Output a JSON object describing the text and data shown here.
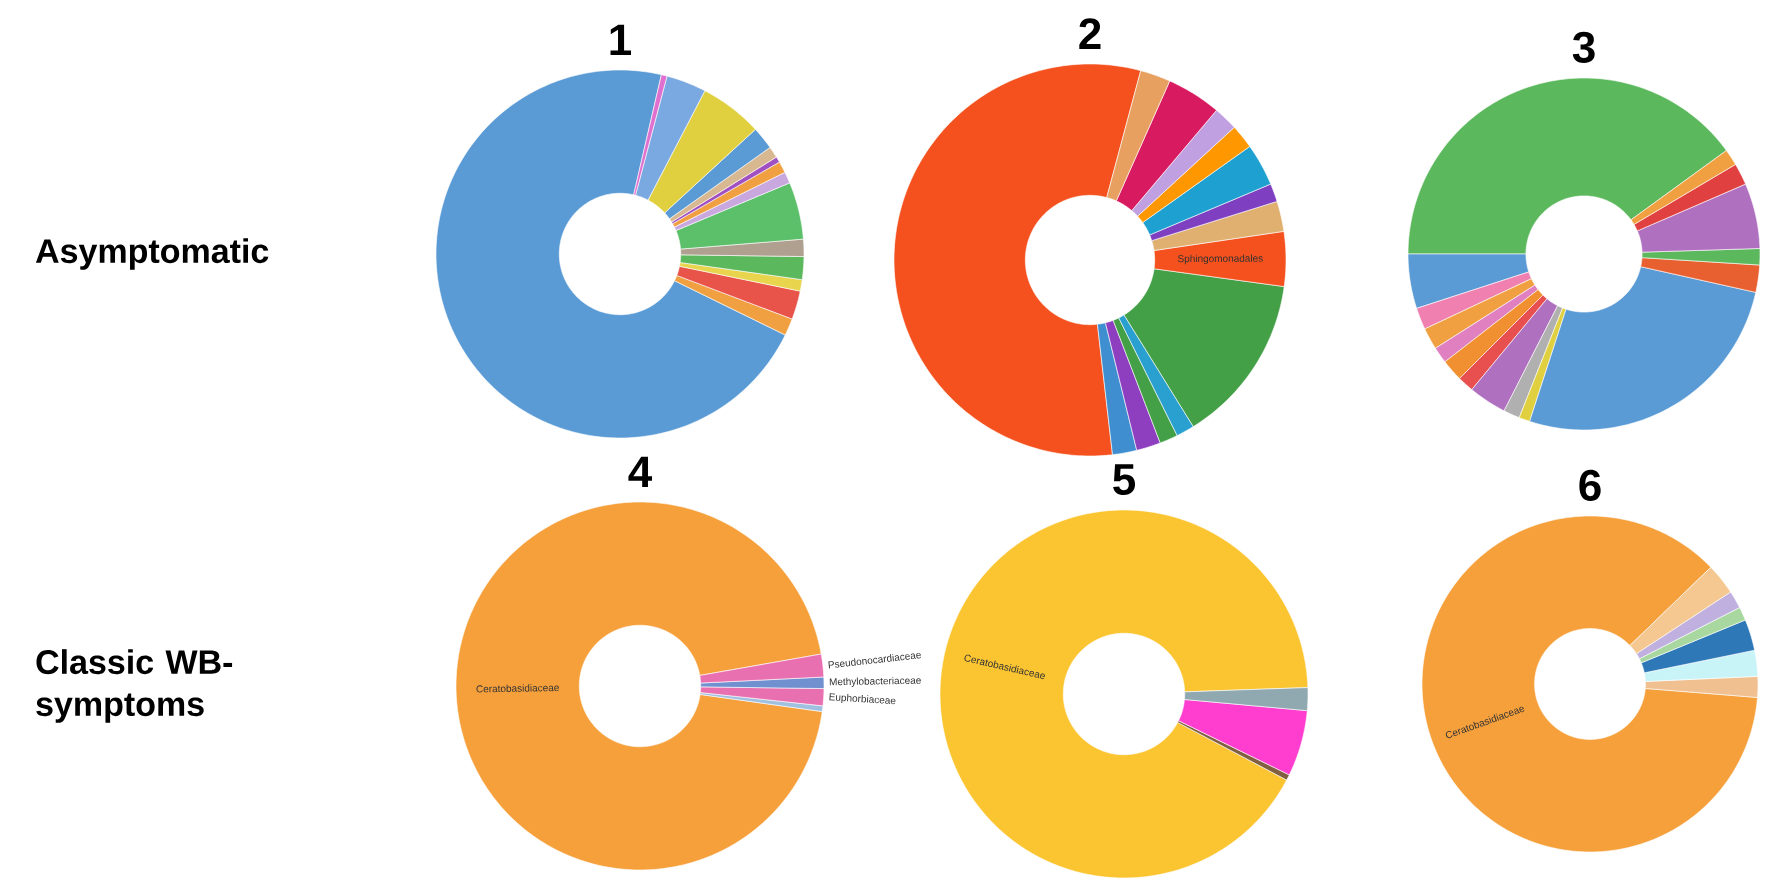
{
  "chart_data": [
    {
      "type": "donut",
      "title": "1",
      "annotations": [
        "Asymptomatic"
      ],
      "categories": [
        null,
        null,
        null,
        null,
        null,
        null,
        null,
        null,
        null,
        null,
        null,
        null,
        null,
        null,
        null
      ],
      "values": [
        71,
        1.5,
        2.5,
        1,
        2,
        1.5,
        5,
        1,
        1,
        0.5,
        1,
        2,
        5.5,
        3.5,
        0.5
      ],
      "colors": [
        "#5b9bd5",
        "#f0a040",
        "#e8534a",
        "#e8d44d",
        "#5cb85c",
        "#b0a090",
        "#5cbf6a",
        "#c9a8e0",
        "#f0a040",
        "#a050c0",
        "#d8b890",
        "#5b9bd5",
        "#e0d040",
        "#7aa8e0",
        "#e070d0"
      ]
    },
    {
      "type": "donut",
      "title": "2",
      "categories": [
        null,
        null,
        null,
        null,
        null,
        null,
        "Sphingomonadales",
        null,
        null,
        null,
        null,
        null,
        null,
        null
      ],
      "values": [
        56,
        2,
        2,
        1.5,
        1.5,
        14,
        4.5,
        2.5,
        1.5,
        3.5,
        2,
        2,
        4.5,
        2.5
      ],
      "colors": [
        "#f4511e",
        "#3f8fd0",
        "#8e3fc0",
        "#43a047",
        "#29a0d0",
        "#43a047",
        "#f4511e",
        "#e0b070",
        "#7e3fc0",
        "#1ea0d0",
        "#ff9800",
        "#c0a0e0",
        "#d81b60",
        "#e8a060"
      ]
    },
    {
      "type": "donut",
      "title": "3",
      "categories": [
        null,
        null,
        null,
        null,
        null,
        null,
        null,
        null,
        null,
        null,
        null,
        null,
        null,
        null,
        null,
        null
      ],
      "values": [
        40,
        5,
        2,
        2,
        1.5,
        2,
        1.5,
        3.5,
        1.5,
        1,
        26.5,
        2.5,
        1.5,
        6,
        2,
        1.5
      ],
      "colors": [
        "#5cb85c",
        "#5b9bd5",
        "#f080b0",
        "#f0a040",
        "#e080c0",
        "#f09030",
        "#e85050",
        "#b070c0",
        "#b0b0b0",
        "#e0d040",
        "#5b9bd5",
        "#e86030",
        "#5cb85c",
        "#b070c0",
        "#e04040",
        "#f0a040"
      ]
    },
    {
      "type": "donut",
      "title": "4",
      "annotations": [
        "Classic WB-symptoms"
      ],
      "categories": [
        "Ceratobasidiaceae",
        null,
        "Euphorbiaceae",
        "Methylobacteriaceae",
        "Pseudonocardiaceae"
      ],
      "values": [
        95,
        0.5,
        1.5,
        1,
        2
      ],
      "colors": [
        "#f6a03c",
        "#a0c0e0",
        "#e870b0",
        "#7090d0",
        "#e870b0"
      ]
    },
    {
      "type": "donut",
      "title": "5",
      "categories": [
        "Ceratobasidiaceae",
        null,
        null,
        null
      ],
      "values": [
        91.7,
        0.5,
        5.8,
        2
      ],
      "colors": [
        "#fbc531",
        "#806040",
        "#ff3ed0",
        "#90a8b0"
      ]
    },
    {
      "type": "donut",
      "title": "6",
      "categories": [
        "Ceratobasidiaceae",
        null,
        null,
        null,
        null,
        null,
        null
      ],
      "values": [
        86.5,
        2,
        2.5,
        3,
        1.3,
        1.7,
        3
      ],
      "colors": [
        "#f6a03c",
        "#f0c090",
        "#c8f4f8",
        "#2f78b8",
        "#a8d8a0",
        "#c0b0e0",
        "#f4c890"
      ]
    }
  ]
}
